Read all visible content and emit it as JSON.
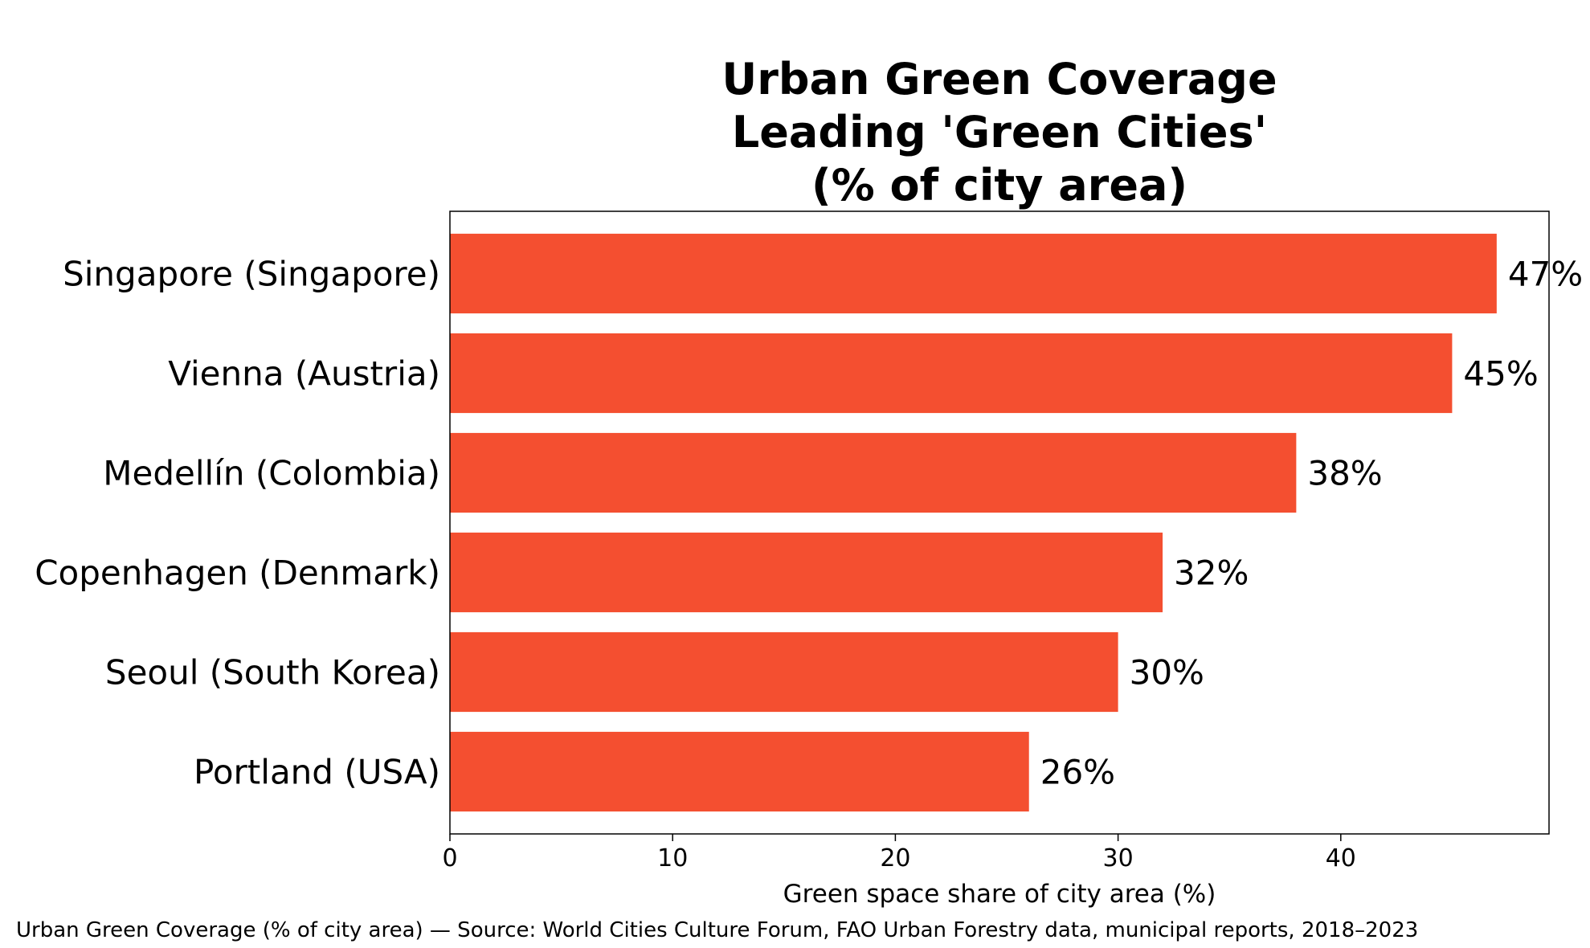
{
  "chart_data": {
    "type": "bar",
    "orientation": "horizontal",
    "title_lines": [
      "Urban Green Coverage",
      "Leading 'Green Cities'",
      "(% of city area)"
    ],
    "categories": [
      "Singapore (Singapore)",
      "Vienna (Austria)",
      "Medellín (Colombia)",
      "Copenhagen (Denmark)",
      "Seoul (South Korea)",
      "Portland (USA)"
    ],
    "values": [
      47,
      45,
      38,
      32,
      30,
      26
    ],
    "value_labels": [
      "47%",
      "45%",
      "38%",
      "32%",
      "30%",
      "26%"
    ],
    "xlabel": "Green space share of city area (%)",
    "ylabel": "",
    "xlim": [
      0,
      49.35
    ],
    "xticks": [
      0,
      10,
      20,
      30,
      40
    ],
    "xtick_labels": [
      "0",
      "10",
      "20",
      "30",
      "40"
    ],
    "grid": false,
    "bar_color": "#f44f30"
  },
  "footer": "Urban Green Coverage (% of city area) — Source: World Cities Culture Forum, FAO Urban Forestry data, municipal reports, 2018–2023"
}
